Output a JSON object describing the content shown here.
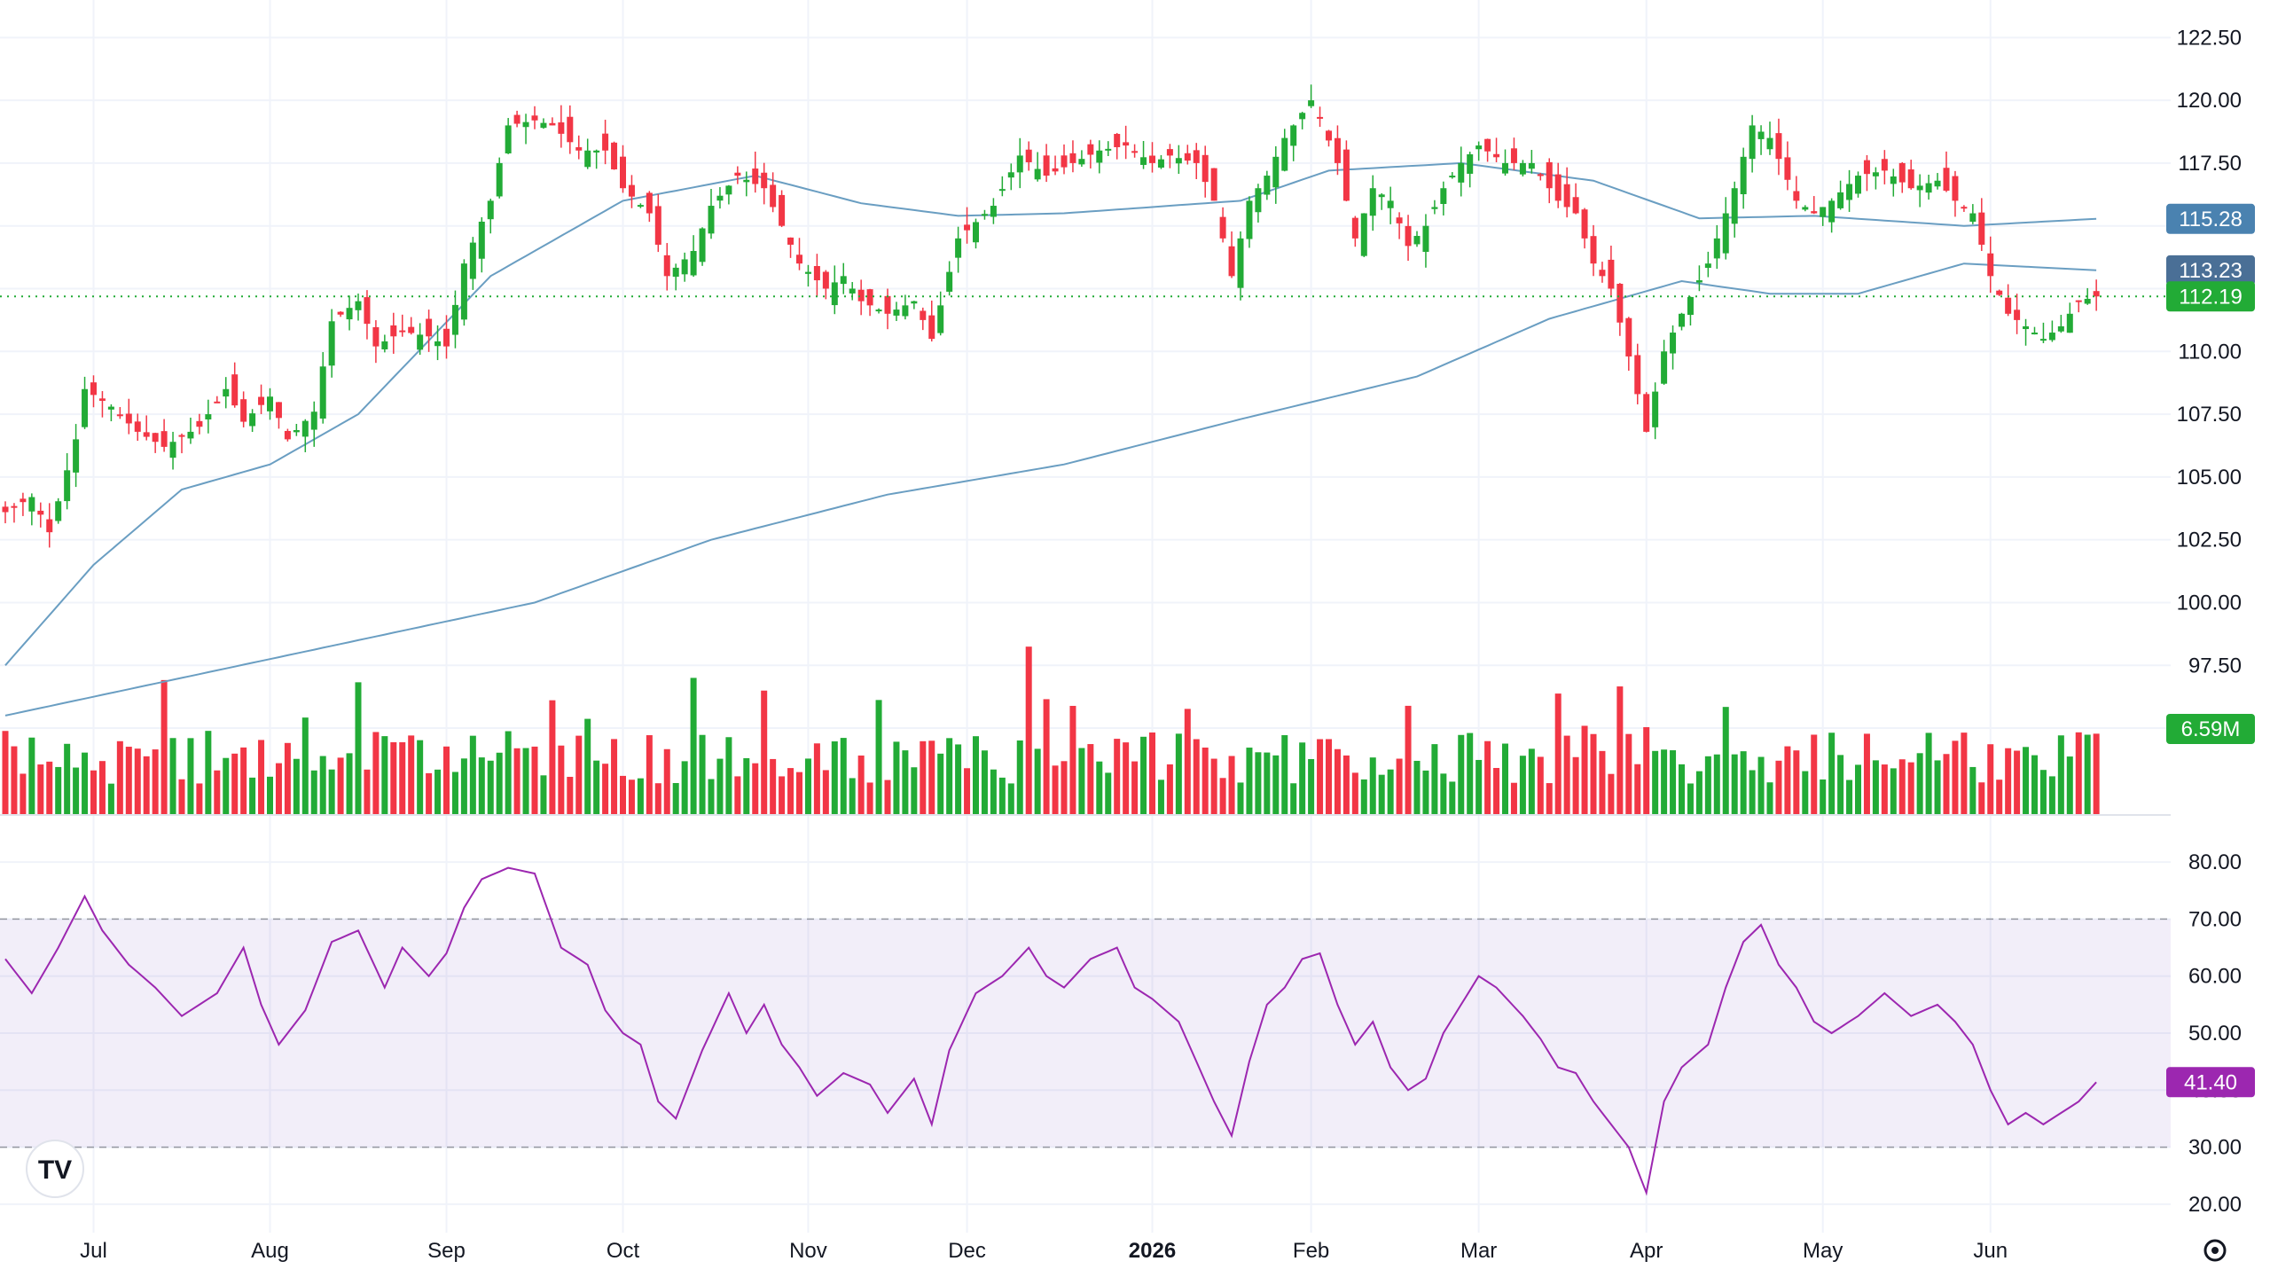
{
  "chart_data": [
    {
      "type": "candlestick",
      "pane": "price",
      "price_axis": {
        "ylim": [
          92.0,
          123.5
        ],
        "ticks": [
          "122.50",
          "120.00",
          "117.50",
          "115.00",
          "112.50",
          "110.00",
          "107.50",
          "105.00",
          "102.50",
          "100.00",
          "97.50",
          "95.00"
        ]
      },
      "x_axis_labels": [
        "Jul",
        "Aug",
        "Sep",
        "Oct",
        "Nov",
        "Dec",
        "2026",
        "Feb",
        "Mar",
        "Apr",
        "May",
        "Jun"
      ],
      "x_axis_bold": "2026",
      "bars": 238,
      "anchors": [
        [
          0,
          103.6
        ],
        [
          3,
          104.2
        ],
        [
          5,
          102.8
        ],
        [
          8,
          106.5
        ],
        [
          9,
          108.5
        ],
        [
          12,
          107.8
        ],
        [
          15,
          106.8
        ],
        [
          18,
          106.2
        ],
        [
          22,
          107.0
        ],
        [
          25,
          108.5
        ],
        [
          27,
          107.2
        ],
        [
          30,
          108.2
        ],
        [
          32,
          106.5
        ],
        [
          35,
          107.6
        ],
        [
          37,
          111.2
        ],
        [
          40,
          112.0
        ],
        [
          42,
          110.2
        ],
        [
          45,
          110.8
        ],
        [
          48,
          110.6
        ],
        [
          50,
          110.2
        ],
        [
          52,
          113.5
        ],
        [
          55,
          116.0
        ],
        [
          57,
          119.0
        ],
        [
          60,
          119.2
        ],
        [
          62,
          119.0
        ],
        [
          65,
          118.0
        ],
        [
          68,
          118.0
        ],
        [
          70,
          116.5
        ],
        [
          73,
          115.5
        ],
        [
          75,
          113.0
        ],
        [
          78,
          114.0
        ],
        [
          80,
          115.8
        ],
        [
          83,
          117.0
        ],
        [
          86,
          116.5
        ],
        [
          88,
          115.0
        ],
        [
          90,
          113.5
        ],
        [
          93,
          112.5
        ],
        [
          95,
          113.0
        ],
        [
          97,
          112.0
        ],
        [
          100,
          111.5
        ],
        [
          103,
          112.0
        ],
        [
          105,
          110.5
        ],
        [
          108,
          114.5
        ],
        [
          112,
          115.8
        ],
        [
          115,
          117.8
        ],
        [
          118,
          117.0
        ],
        [
          121,
          117.5
        ],
        [
          124,
          118.0
        ],
        [
          127,
          118.2
        ],
        [
          130,
          117.5
        ],
        [
          132,
          117.8
        ],
        [
          135,
          117.5
        ],
        [
          137,
          116.0
        ],
        [
          139,
          113.0
        ],
        [
          141,
          116.0
        ],
        [
          143,
          117.0
        ],
        [
          145,
          118.5
        ],
        [
          148,
          120.0
        ],
        [
          149,
          119.3
        ],
        [
          151,
          117.5
        ],
        [
          153,
          114.5
        ],
        [
          155,
          116.5
        ],
        [
          157,
          116.0
        ],
        [
          159,
          114.2
        ],
        [
          161,
          115.0
        ],
        [
          163,
          116.5
        ],
        [
          165,
          117.5
        ],
        [
          167,
          118.2
        ],
        [
          170,
          117.5
        ],
        [
          173,
          117.5
        ],
        [
          176,
          116.0
        ],
        [
          178,
          115.5
        ],
        [
          180,
          113.5
        ],
        [
          182,
          112.5
        ],
        [
          184,
          109.8
        ],
        [
          186,
          106.8
        ],
        [
          188,
          110.0
        ],
        [
          190,
          111.5
        ],
        [
          193,
          113.5
        ],
        [
          196,
          116.5
        ],
        [
          198,
          119.0
        ],
        [
          200,
          118.5
        ],
        [
          203,
          116.0
        ],
        [
          205,
          115.5
        ],
        [
          207,
          116.0
        ],
        [
          210,
          117.0
        ],
        [
          213,
          117.2
        ],
        [
          216,
          116.5
        ],
        [
          219,
          116.8
        ],
        [
          221,
          116.0
        ],
        [
          223,
          115.5
        ],
        [
          225,
          113.0
        ],
        [
          227,
          111.5
        ],
        [
          229,
          111.0
        ],
        [
          231,
          110.5
        ],
        [
          233,
          111.0
        ],
        [
          235,
          112.0
        ],
        [
          237,
          112.19
        ]
      ],
      "ma_short": {
        "value_last": "115.28",
        "anchors": [
          [
            0,
            97.5
          ],
          [
            10,
            101.5
          ],
          [
            20,
            104.5
          ],
          [
            30,
            105.5
          ],
          [
            40,
            107.5
          ],
          [
            55,
            113.0
          ],
          [
            70,
            116.0
          ],
          [
            85,
            117.0
          ],
          [
            97,
            115.9
          ],
          [
            108,
            115.4
          ],
          [
            120,
            115.5
          ],
          [
            140,
            116.0
          ],
          [
            150,
            117.2
          ],
          [
            165,
            117.5
          ],
          [
            180,
            116.8
          ],
          [
            192,
            115.3
          ],
          [
            205,
            115.4
          ],
          [
            222,
            115.0
          ],
          [
            237,
            115.28
          ]
        ]
      },
      "ma_long": {
        "value_last": "113.23",
        "anchors": [
          [
            0,
            95.5
          ],
          [
            20,
            97.0
          ],
          [
            40,
            98.5
          ],
          [
            60,
            100.0
          ],
          [
            80,
            102.5
          ],
          [
            100,
            104.3
          ],
          [
            120,
            105.5
          ],
          [
            140,
            107.3
          ],
          [
            160,
            109.0
          ],
          [
            175,
            111.3
          ],
          [
            190,
            112.8
          ],
          [
            200,
            112.3
          ],
          [
            210,
            112.3
          ],
          [
            222,
            113.5
          ],
          [
            237,
            113.23
          ]
        ]
      },
      "last_price_label": "112.19",
      "colors": {
        "up": "#22ab36",
        "down": "#f23645",
        "ma": "#6a9ec2",
        "last": "#22ab36",
        "ma_short_badge": "#4a82b0",
        "ma_long_badge": "#4a6f96"
      }
    },
    {
      "type": "bar",
      "pane": "volume",
      "last_value_label": "6.59M",
      "note": "volume bars coloured by candle direction"
    },
    {
      "type": "line",
      "pane": "rsi",
      "rsi_axis": {
        "ylim": [
          15,
          85
        ],
        "ticks": [
          "80.00",
          "70.00",
          "60.00",
          "50.00",
          "40.00",
          "30.00",
          "20.00"
        ]
      },
      "overbought": 70,
      "oversold": 30,
      "last_value_label": "41.40",
      "anchors": [
        [
          0,
          63
        ],
        [
          3,
          57
        ],
        [
          6,
          65
        ],
        [
          9,
          74
        ],
        [
          11,
          68
        ],
        [
          14,
          62
        ],
        [
          17,
          58
        ],
        [
          20,
          53
        ],
        [
          24,
          57
        ],
        [
          27,
          65
        ],
        [
          29,
          55
        ],
        [
          31,
          48
        ],
        [
          34,
          54
        ],
        [
          37,
          66
        ],
        [
          40,
          68
        ],
        [
          43,
          58
        ],
        [
          45,
          65
        ],
        [
          48,
          60
        ],
        [
          50,
          64
        ],
        [
          52,
          72
        ],
        [
          54,
          77
        ],
        [
          57,
          79
        ],
        [
          60,
          78
        ],
        [
          63,
          65
        ],
        [
          66,
          62
        ],
        [
          68,
          54
        ],
        [
          70,
          50
        ],
        [
          72,
          48
        ],
        [
          74,
          38
        ],
        [
          76,
          35
        ],
        [
          79,
          47
        ],
        [
          82,
          57
        ],
        [
          84,
          50
        ],
        [
          86,
          55
        ],
        [
          88,
          48
        ],
        [
          90,
          44
        ],
        [
          92,
          39
        ],
        [
          95,
          43
        ],
        [
          98,
          41
        ],
        [
          100,
          36
        ],
        [
          103,
          42
        ],
        [
          105,
          34
        ],
        [
          107,
          47
        ],
        [
          110,
          57
        ],
        [
          113,
          60
        ],
        [
          116,
          65
        ],
        [
          118,
          60
        ],
        [
          120,
          58
        ],
        [
          123,
          63
        ],
        [
          126,
          65
        ],
        [
          128,
          58
        ],
        [
          130,
          56
        ],
        [
          133,
          52
        ],
        [
          135,
          45
        ],
        [
          137,
          38
        ],
        [
          139,
          32
        ],
        [
          141,
          45
        ],
        [
          143,
          55
        ],
        [
          145,
          58
        ],
        [
          147,
          63
        ],
        [
          149,
          64
        ],
        [
          151,
          55
        ],
        [
          153,
          48
        ],
        [
          155,
          52
        ],
        [
          157,
          44
        ],
        [
          159,
          40
        ],
        [
          161,
          42
        ],
        [
          163,
          50
        ],
        [
          165,
          55
        ],
        [
          167,
          60
        ],
        [
          169,
          58
        ],
        [
          172,
          53
        ],
        [
          174,
          49
        ],
        [
          176,
          44
        ],
        [
          178,
          43
        ],
        [
          180,
          38
        ],
        [
          182,
          34
        ],
        [
          184,
          30
        ],
        [
          186,
          22
        ],
        [
          188,
          38
        ],
        [
          190,
          44
        ],
        [
          193,
          48
        ],
        [
          195,
          58
        ],
        [
          197,
          66
        ],
        [
          199,
          69
        ],
        [
          201,
          62
        ],
        [
          203,
          58
        ],
        [
          205,
          52
        ],
        [
          207,
          50
        ],
        [
          210,
          53
        ],
        [
          213,
          57
        ],
        [
          216,
          53
        ],
        [
          219,
          55
        ],
        [
          221,
          52
        ],
        [
          223,
          48
        ],
        [
          225,
          40
        ],
        [
          227,
          34
        ],
        [
          229,
          36
        ],
        [
          231,
          34
        ],
        [
          233,
          36
        ],
        [
          235,
          38
        ],
        [
          237,
          41.4
        ]
      ]
    }
  ]
}
